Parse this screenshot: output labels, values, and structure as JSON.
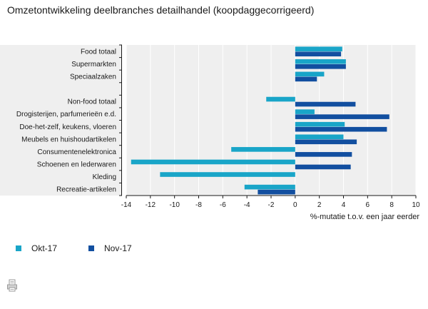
{
  "title": "Omzetontwikkeling deelbranches detailhandel (koopdaggecorrigeerd)",
  "colors": {
    "okt": "#19a5c8",
    "nov": "#124fa0",
    "bg": "#efefef",
    "grid": "#ffffff",
    "axis": "#1a1a1a"
  },
  "icons": {
    "print": "print-icon"
  },
  "chart_data": {
    "type": "bar",
    "orientation": "horizontal",
    "title": "Omzetontwikkeling deelbranches detailhandel (koopdaggecorrigeerd)",
    "xlabel": "%-mutatie t.o.v. een jaar eerder",
    "xlim": [
      -14,
      10
    ],
    "xticks": [
      -14,
      -12,
      -10,
      -8,
      -6,
      -4,
      -2,
      0,
      2,
      4,
      6,
      8,
      10
    ],
    "grid": true,
    "legend_position": "bottom",
    "categories": [
      "Food totaal",
      "Supermarkten",
      "Speciaalzaken",
      "",
      "Non-food totaal",
      "Drogisterijen, parfumerieën e.d.",
      "Doe-het-zelf, keukens, vloeren",
      "Meubels en huishoudartikelen",
      "Consumentenelektronica",
      "Schoenen en lederwaren",
      "Kleding",
      "Recreatie-artikelen"
    ],
    "series": [
      {
        "name": "Okt-17",
        "values": [
          3.9,
          4.2,
          2.4,
          null,
          -2.4,
          1.6,
          4.1,
          4.0,
          -5.3,
          -13.6,
          -11.2,
          -4.2
        ]
      },
      {
        "name": "Nov-17",
        "values": [
          3.8,
          4.2,
          1.8,
          null,
          5.0,
          7.8,
          7.6,
          5.1,
          4.7,
          4.6,
          null,
          -3.1
        ]
      }
    ]
  }
}
